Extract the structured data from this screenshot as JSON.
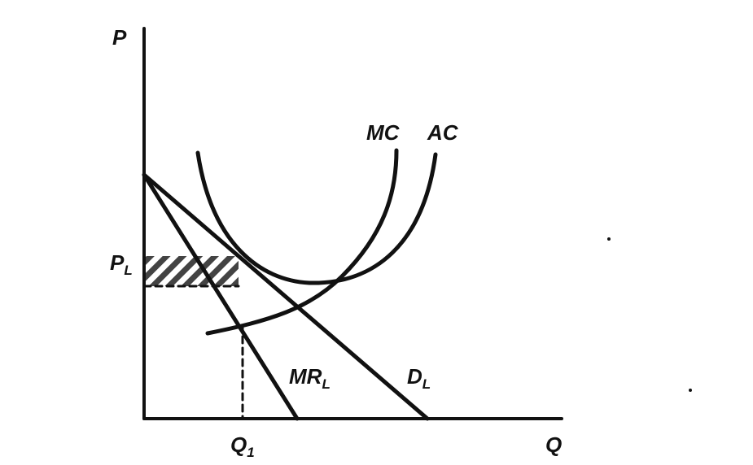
{
  "axes": {
    "y": "P",
    "x": "Q"
  },
  "curves": {
    "mc": "MC",
    "ac": "AC"
  },
  "lines": {
    "mr": {
      "text": "MR",
      "sub": "L"
    },
    "d": {
      "text": "D",
      "sub": "L"
    }
  },
  "marks": {
    "price": {
      "text": "P",
      "sub": "L"
    },
    "quantity": {
      "text": "Q",
      "sub": "1"
    }
  }
}
